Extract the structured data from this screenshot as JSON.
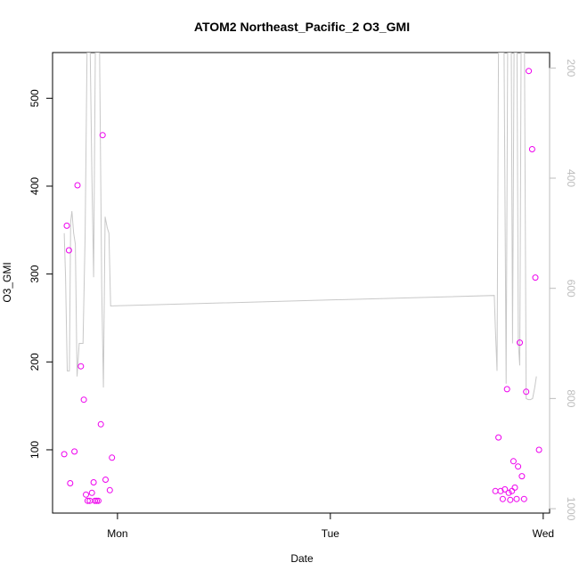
{
  "chart_data": {
    "type": "scatter",
    "title": "ATOM2 Northeast_Pacific_2 O3_GMI",
    "xlabel": "Date",
    "ylabel": "O3_GMI",
    "x_range": [
      -0.305,
      2.03
    ],
    "y_range": [
      28,
      552
    ],
    "x_ticks": [
      {
        "value": 0,
        "label": "Mon"
      },
      {
        "value": 1,
        "label": "Tue"
      },
      {
        "value": 2,
        "label": "Wed"
      }
    ],
    "y_ticks": [
      {
        "value": 100,
        "label": "100"
      },
      {
        "value": 200,
        "label": "200"
      },
      {
        "value": 300,
        "label": "300"
      },
      {
        "value": 400,
        "label": "400"
      },
      {
        "value": 500,
        "label": "500"
      }
    ],
    "y2_range": [
      1008,
      172
    ],
    "y2_ticks": [
      {
        "value": 200,
        "label": "200"
      },
      {
        "value": 400,
        "label": "400"
      },
      {
        "value": 600,
        "label": "600"
      },
      {
        "value": 800,
        "label": "800"
      },
      {
        "value": 1000,
        "label": "1000"
      }
    ],
    "colors": {
      "points": "#ee00ee",
      "pressure_line": "#c8c8c8",
      "axis": "#000000",
      "right_axis": "#bdbdbd"
    },
    "points": [
      {
        "x": -0.25,
        "y": 95
      },
      {
        "x": -0.238,
        "y": 355
      },
      {
        "x": -0.228,
        "y": 327
      },
      {
        "x": -0.222,
        "y": 62
      },
      {
        "x": -0.202,
        "y": 98
      },
      {
        "x": -0.188,
        "y": 401
      },
      {
        "x": -0.172,
        "y": 195
      },
      {
        "x": -0.158,
        "y": 157
      },
      {
        "x": -0.148,
        "y": 49
      },
      {
        "x": -0.14,
        "y": 42
      },
      {
        "x": -0.13,
        "y": 42
      },
      {
        "x": -0.12,
        "y": 51
      },
      {
        "x": -0.112,
        "y": 63
      },
      {
        "x": -0.106,
        "y": 42
      },
      {
        "x": -0.098,
        "y": 42
      },
      {
        "x": -0.09,
        "y": 42
      },
      {
        "x": -0.078,
        "y": 129
      },
      {
        "x": -0.07,
        "y": 458
      },
      {
        "x": -0.056,
        "y": 66
      },
      {
        "x": -0.036,
        "y": 54
      },
      {
        "x": -0.026,
        "y": 91
      },
      {
        "x": 1.775,
        "y": 53
      },
      {
        "x": 1.79,
        "y": 114
      },
      {
        "x": 1.8,
        "y": 53
      },
      {
        "x": 1.81,
        "y": 44
      },
      {
        "x": 1.82,
        "y": 55
      },
      {
        "x": 1.83,
        "y": 169
      },
      {
        "x": 1.838,
        "y": 51
      },
      {
        "x": 1.845,
        "y": 43
      },
      {
        "x": 1.853,
        "y": 53
      },
      {
        "x": 1.86,
        "y": 87
      },
      {
        "x": 1.867,
        "y": 57
      },
      {
        "x": 1.875,
        "y": 44
      },
      {
        "x": 1.882,
        "y": 81
      },
      {
        "x": 1.89,
        "y": 222
      },
      {
        "x": 1.9,
        "y": 70
      },
      {
        "x": 1.91,
        "y": 44
      },
      {
        "x": 1.92,
        "y": 166
      },
      {
        "x": 1.932,
        "y": 531
      },
      {
        "x": 1.948,
        "y": 442
      },
      {
        "x": 1.963,
        "y": 296
      },
      {
        "x": 1.98,
        "y": 100
      }
    ],
    "pressure_line": [
      {
        "x": -0.25,
        "y2": 500
      },
      {
        "x": -0.244,
        "y2": 580
      },
      {
        "x": -0.236,
        "y2": 750
      },
      {
        "x": -0.226,
        "y2": 750
      },
      {
        "x": -0.22,
        "y2": 480
      },
      {
        "x": -0.214,
        "y2": 460
      },
      {
        "x": -0.206,
        "y2": 500
      },
      {
        "x": -0.198,
        "y2": 520
      },
      {
        "x": -0.19,
        "y2": 760
      },
      {
        "x": -0.18,
        "y2": 700
      },
      {
        "x": -0.17,
        "y2": 700
      },
      {
        "x": -0.162,
        "y2": 700
      },
      {
        "x": -0.152,
        "y2": 500
      },
      {
        "x": -0.143,
        "y2": 172
      },
      {
        "x": -0.138,
        "y2": 172
      },
      {
        "x": -0.128,
        "y2": 172
      },
      {
        "x": -0.12,
        "y2": 400
      },
      {
        "x": -0.112,
        "y2": 580
      },
      {
        "x": -0.104,
        "y2": 172
      },
      {
        "x": -0.094,
        "y2": 172
      },
      {
        "x": -0.084,
        "y2": 172
      },
      {
        "x": -0.074,
        "y2": 600
      },
      {
        "x": -0.066,
        "y2": 780
      },
      {
        "x": -0.058,
        "y2": 470
      },
      {
        "x": -0.048,
        "y2": 490
      },
      {
        "x": -0.04,
        "y2": 500
      },
      {
        "x": -0.032,
        "y2": 632
      },
      {
        "x": 1.77,
        "y2": 613
      },
      {
        "x": 1.775,
        "y2": 672
      },
      {
        "x": 1.783,
        "y2": 750
      },
      {
        "x": 1.79,
        "y2": 172
      },
      {
        "x": 1.8,
        "y2": 172
      },
      {
        "x": 1.81,
        "y2": 172
      },
      {
        "x": 1.816,
        "y2": 172
      },
      {
        "x": 1.826,
        "y2": 773
      },
      {
        "x": 1.833,
        "y2": 172
      },
      {
        "x": 1.84,
        "y2": 172
      },
      {
        "x": 1.85,
        "y2": 172
      },
      {
        "x": 1.856,
        "y2": 700
      },
      {
        "x": 1.863,
        "y2": 172
      },
      {
        "x": 1.87,
        "y2": 172
      },
      {
        "x": 1.877,
        "y2": 172
      },
      {
        "x": 1.883,
        "y2": 700
      },
      {
        "x": 1.89,
        "y2": 740
      },
      {
        "x": 1.896,
        "y2": 172
      },
      {
        "x": 1.905,
        "y2": 172
      },
      {
        "x": 1.912,
        "y2": 172
      },
      {
        "x": 1.92,
        "y2": 800
      },
      {
        "x": 1.93,
        "y2": 802
      },
      {
        "x": 1.94,
        "y2": 802
      },
      {
        "x": 1.95,
        "y2": 800
      },
      {
        "x": 1.96,
        "y2": 780
      },
      {
        "x": 1.968,
        "y2": 760
      }
    ]
  }
}
